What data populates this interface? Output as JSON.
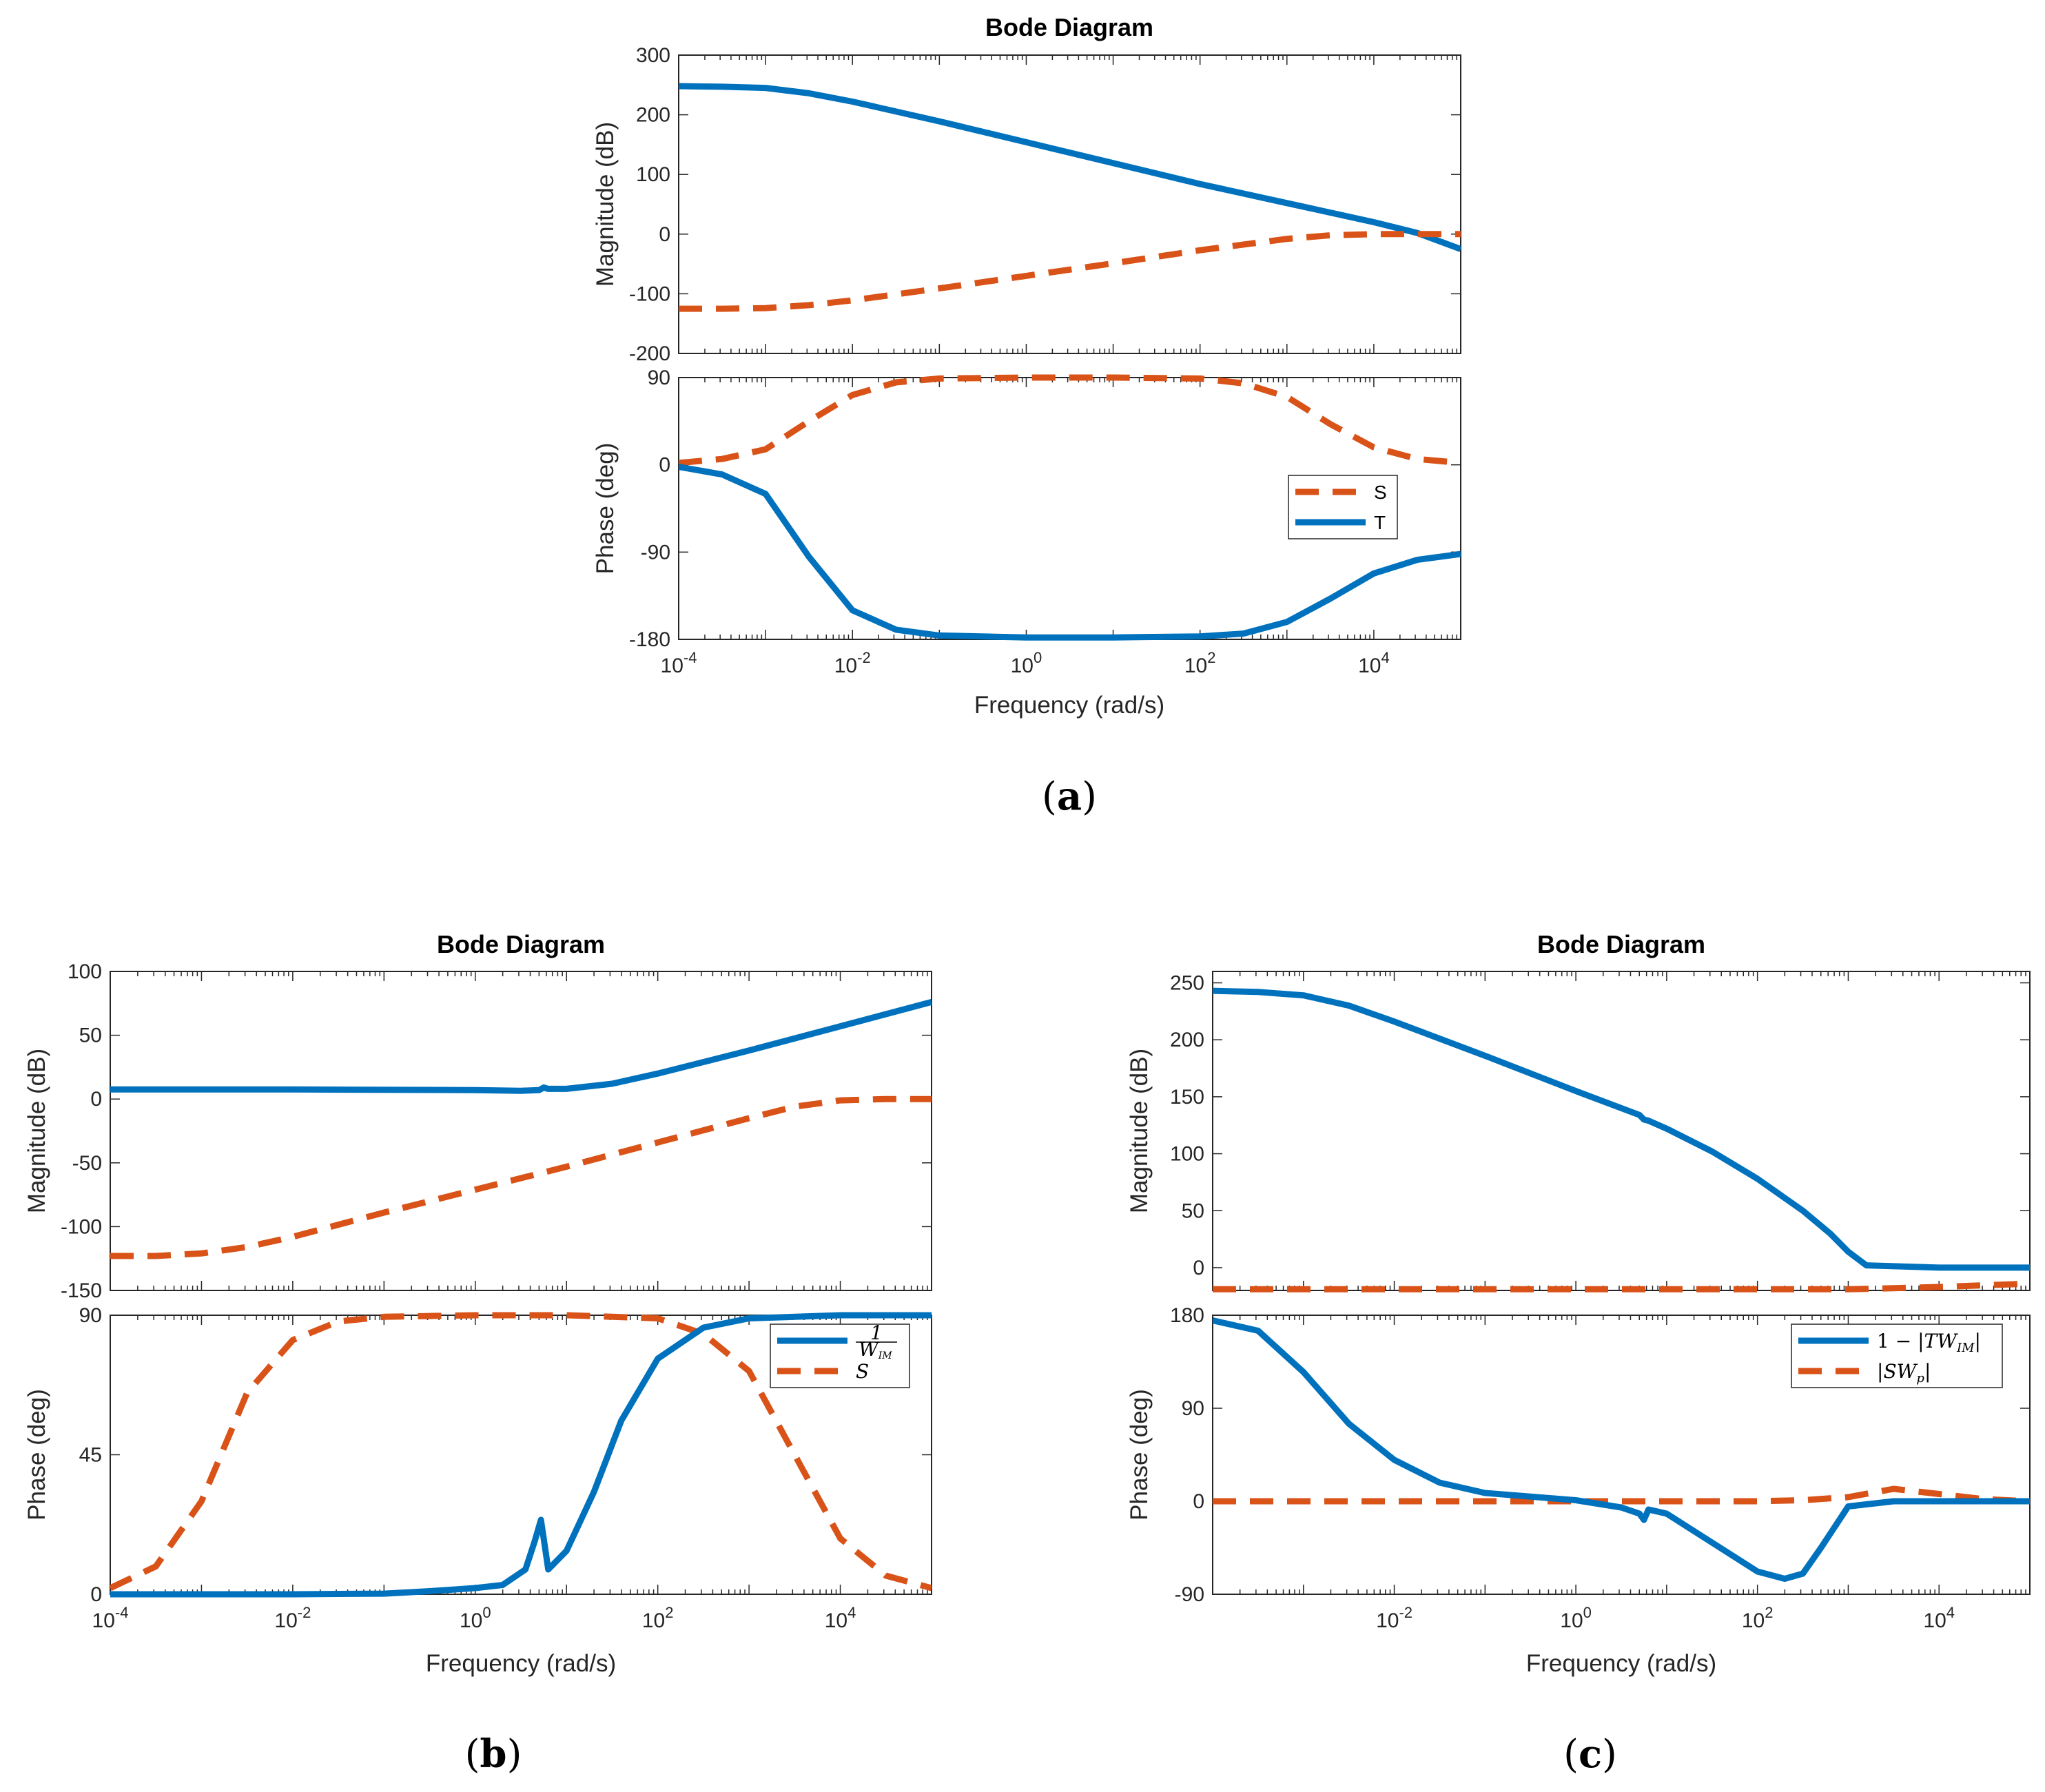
{
  "colors": {
    "T": "#0072BD",
    "S": "#D95319",
    "axis": "#262626"
  },
  "chart_data": [
    {
      "id": "a",
      "caption": "(a)",
      "type": "line",
      "title": "Bode Diagram",
      "xlabel": "Frequency  (rad/s)",
      "xscale": "log",
      "xlim": [
        0.0001,
        100000
      ],
      "xticks": [
        "-4",
        "-2",
        "0",
        "2",
        "4"
      ],
      "xtick_base": "10",
      "legend": {
        "location": "middle-right of phase panel",
        "entries": [
          {
            "series": "S",
            "label": "S"
          },
          {
            "series": "T",
            "label": "T"
          }
        ]
      },
      "magnitude": {
        "ylabel": "Magnitude (dB)",
        "ylim": [
          -200,
          300
        ],
        "yticks": [
          "-200",
          "-100",
          "0",
          "100",
          "200",
          "300"
        ],
        "series": [
          {
            "name": "T",
            "style": "solid",
            "color": "T",
            "x": [
              -4,
              -3.5,
              -3,
              -2.5,
              -2,
              -1,
              0,
              1,
              2,
              3,
              3.5,
              4,
              4.5,
              5
            ],
            "y": [
              248,
              247,
              245,
              236,
              222,
              189,
              154,
              119,
              84,
              52,
              36,
              20,
              2,
              -25
            ]
          },
          {
            "name": "S",
            "style": "dashed",
            "color": "S",
            "x": [
              -4,
              -3.5,
              -3,
              -2.5,
              -2,
              -1,
              0,
              1,
              2,
              3,
              3.5,
              4,
              4.5,
              5
            ],
            "y": [
              -125,
              -125,
              -124,
              -119,
              -111,
              -91,
              -70,
              -49,
              -27,
              -8,
              -2,
              0,
              0,
              0
            ]
          }
        ]
      },
      "phase": {
        "ylabel": "Phase (deg)",
        "ylim": [
          -180,
          90
        ],
        "yticks": [
          "-180",
          "-90",
          "0",
          "90"
        ],
        "series": [
          {
            "name": "S",
            "style": "dashed",
            "color": "S",
            "x": [
              -4,
              -3.5,
              -3,
              -2.5,
              -2,
              -1.5,
              -1,
              0,
              1,
              2,
              2.5,
              3,
              3.5,
              4,
              4.5,
              5
            ],
            "y": [
              2,
              6,
              16,
              45,
              72,
              85,
              89,
              90,
              90,
              89,
              84,
              70,
              42,
              18,
              6,
              2
            ]
          },
          {
            "name": "T",
            "style": "solid",
            "color": "T",
            "x": [
              -4,
              -3.5,
              -3,
              -2.5,
              -2,
              -1.5,
              -1,
              0,
              1,
              2,
              2.5,
              3,
              3.5,
              4,
              4.5,
              5
            ],
            "y": [
              -2,
              -10,
              -30,
              -95,
              -150,
              -170,
              -176,
              -178,
              -178,
              -177,
              -174,
              -162,
              -138,
              -112,
              -98,
              -92
            ]
          }
        ]
      }
    },
    {
      "id": "b",
      "caption": "(b)",
      "type": "line",
      "title": "Bode Diagram",
      "xlabel": "Frequency  (rad/s)",
      "xscale": "log",
      "xlim": [
        0.0001,
        100000
      ],
      "xticks": [
        "-4",
        "-2",
        "0",
        "2",
        "4"
      ],
      "xtick_base": "10",
      "legend": {
        "location": "top-right of phase panel",
        "entries": [
          {
            "series": "invW",
            "label": "1/W",
            "num": "1",
            "den": "W",
            "sub": "IM"
          },
          {
            "series": "S",
            "label": "S"
          }
        ]
      },
      "magnitude": {
        "ylabel": "Magnitude (dB)",
        "ylim": [
          -150,
          100
        ],
        "yticks": [
          "-150",
          "-100",
          "-50",
          "0",
          "50",
          "100"
        ],
        "series": [
          {
            "name": "invW",
            "style": "solid",
            "color": "T",
            "x": [
              -4,
              -2,
              0,
              0.5,
              0.7,
              0.75,
              0.8,
              1,
              1.5,
              2,
              3,
              4,
              5
            ],
            "y": [
              7.5,
              7.5,
              7,
              6.5,
              7,
              9,
              8,
              8,
              12,
              20,
              38,
              57,
              76
            ]
          },
          {
            "name": "S",
            "style": "dashed",
            "color": "S",
            "x": [
              -4,
              -3.5,
              -3,
              -2.5,
              -2,
              -1,
              0,
              1,
              2,
              3,
              3.5,
              4,
              4.5,
              5
            ],
            "y": [
              -123,
              -123,
              -121,
              -116,
              -108,
              -89,
              -71,
              -53,
              -34,
              -15,
              -6,
              -1,
              0,
              0
            ]
          }
        ]
      },
      "phase": {
        "ylabel": "Phase (deg)",
        "ylim": [
          0,
          90
        ],
        "yticks": [
          "0",
          "45",
          "90"
        ],
        "series": [
          {
            "name": "S",
            "style": "dashed",
            "color": "S",
            "x": [
              -4,
              -3.5,
              -3,
              -2.5,
              -2,
              -1.5,
              -1,
              0,
              1,
              2,
              2.5,
              3,
              3.5,
              4,
              4.5,
              5
            ],
            "y": [
              2,
              9,
              30,
              65,
              82,
              88,
              89.5,
              90,
              90,
              89,
              84,
              72,
              45,
              18,
              6,
              2
            ]
          },
          {
            "name": "invW",
            "style": "solid",
            "color": "T",
            "x": [
              -4,
              -2,
              -1,
              -0.5,
              0,
              0.3,
              0.55,
              0.65,
              0.72,
              0.8,
              1,
              1.3,
              1.6,
              2,
              2.5,
              3,
              4,
              5
            ],
            "y": [
              0,
              0,
              0.2,
              1,
              2,
              3,
              8,
              17,
              24,
              8,
              14,
              33,
              56,
              76,
              86,
              89,
              90,
              90
            ]
          }
        ]
      }
    },
    {
      "id": "c",
      "caption": "(c)",
      "type": "line",
      "title": "Bode Diagram",
      "xlabel": "Frequency  (rad/s)",
      "xscale": "log",
      "xlim": [
        0.0001,
        100000
      ],
      "xticks": [
        "-2",
        "0",
        "2",
        "4"
      ],
      "xtick_base": "10",
      "legend": {
        "location": "top-right of phase panel",
        "entries": [
          {
            "series": "oneMinusTW",
            "label": "1 − |TW_IM|",
            "pre": "1 − |",
            "main": "TW",
            "sub": "IM",
            "post": "|"
          },
          {
            "series": "SWp",
            "label": "|SW_p|",
            "pre": "|",
            "main": "SW",
            "sub": "p",
            "post": "|"
          }
        ]
      },
      "magnitude": {
        "ylabel": "Magnitude (dB)",
        "ylim": [
          -20,
          260
        ],
        "yticks": [
          "0",
          "50",
          "100",
          "150",
          "200",
          "250"
        ],
        "series": [
          {
            "name": "oneMinusTW",
            "style": "solid",
            "color": "T",
            "x": [
              -4,
              -3.5,
              -3,
              -2.5,
              -2,
              -1,
              0,
              0.7,
              0.75,
              0.8,
              1,
              1.5,
              2,
              2.5,
              2.8,
              3,
              3.2,
              4,
              5
            ],
            "y": [
              243,
              242,
              239,
              230,
              216,
              186,
              155,
              134,
              130,
              129,
              122,
              102,
              78,
              50,
              30,
              14,
              2,
              0,
              0
            ]
          },
          {
            "name": "SWp",
            "style": "dashed",
            "color": "S",
            "x": [
              -4,
              -2,
              0,
              2,
              3,
              3.5,
              4,
              5
            ],
            "y": [
              -19,
              -19,
              -19,
              -19,
              -19,
              -18,
              -17,
              -14
            ]
          }
        ]
      },
      "phase": {
        "ylabel": "Phase (deg)",
        "ylim": [
          -90,
          180
        ],
        "yticks": [
          "-90",
          "0",
          "90",
          "180"
        ],
        "series": [
          {
            "name": "SWp",
            "style": "dashed",
            "color": "S",
            "x": [
              -4,
              -2,
              0,
              1,
              2,
              2.5,
              3,
              3.5,
              4,
              4.5,
              5
            ],
            "y": [
              0,
              0,
              0,
              0,
              0,
              1,
              4,
              12,
              7,
              2,
              0
            ]
          },
          {
            "name": "oneMinusTW",
            "style": "solid",
            "color": "T",
            "x": [
              -4,
              -3.5,
              -3,
              -2.5,
              -2,
              -1.5,
              -1,
              0,
              0.5,
              0.7,
              0.75,
              0.8,
              1,
              1.5,
              2,
              2.3,
              2.5,
              2.7,
              3,
              3.5,
              4,
              5
            ],
            "y": [
              175,
              165,
              125,
              75,
              40,
              18,
              8,
              1,
              -6,
              -12,
              -18,
              -8,
              -12,
              -40,
              -68,
              -75,
              -70,
              -45,
              -5,
              0,
              0,
              0
            ]
          }
        ]
      }
    }
  ]
}
